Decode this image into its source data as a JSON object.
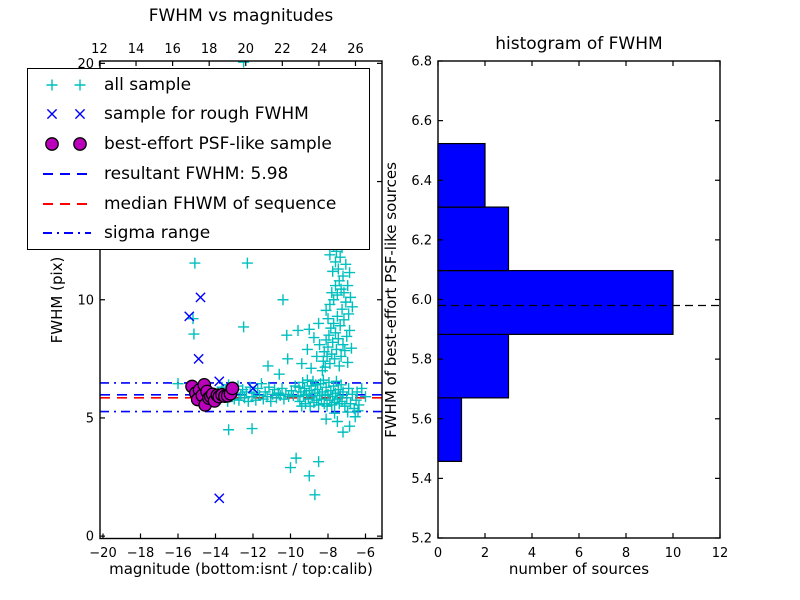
{
  "figure": {
    "background": "#ffffff"
  },
  "colors": {
    "all_sample": "#00bfbf",
    "rough_sample": "#0000ff",
    "psf_sample": "#bb00bb",
    "psf_edge": "#000000",
    "resultant_line": "#0000ff",
    "median_line": "#ff0000",
    "sigma_line": "#0000ff",
    "hist_bar": "#0000ff",
    "hist_bar_edge": "#000000",
    "hist_dashed_line": "#000000",
    "axis": "#000000"
  },
  "chart_data": [
    {
      "type": "scatter",
      "title": "FWHM vs magnitudes",
      "xlabel": "magnitude (bottom:isnt / top:calib)",
      "ylabel": "FWHM (pix)",
      "xlim": [
        -20.16,
        -5.12
      ],
      "ylim": [
        -0.1,
        20.1
      ],
      "top_xlim": [
        12.03,
        27.45
      ],
      "grid": false,
      "x_tick_values": [
        -20,
        -18,
        -16,
        -14,
        -12,
        -10,
        -8,
        -6
      ],
      "x_tick_labels": [
        "−20",
        "−18",
        "−16",
        "−14",
        "−12",
        "−10",
        "−8",
        "−6"
      ],
      "y_tick_values": [
        0,
        5,
        10,
        15,
        20
      ],
      "y_tick_labels": [
        "0",
        "5",
        "10",
        "15",
        "20"
      ],
      "top_tick_values": [
        12,
        14,
        16,
        18,
        20,
        22,
        24,
        26
      ],
      "top_tick_labels": [
        "12",
        "14",
        "16",
        "18",
        "20",
        "22",
        "24",
        "26"
      ],
      "hlines": [
        {
          "name": "sigma-upper",
          "y": 6.48,
          "style": "dashdot",
          "color": "#0000ff"
        },
        {
          "name": "resultant-fwhm",
          "y": 5.98,
          "style": "dashed",
          "color": "#0000ff"
        },
        {
          "name": "median-fwhm",
          "y": 5.85,
          "style": "dashed",
          "color": "#ff0000"
        },
        {
          "name": "sigma-lower",
          "y": 5.27,
          "style": "dashdot",
          "color": "#0000ff"
        }
      ],
      "series": [
        {
          "name": "all sample",
          "marker": "plus",
          "color": "#00bfbf",
          "points": [
            [
              -16.0,
              6.45
            ],
            [
              -15.2,
              9.2
            ],
            [
              -15.15,
              8.55
            ],
            [
              -15.1,
              11.55
            ],
            [
              -12.3,
              11.55
            ],
            [
              -12.5,
              8.85
            ],
            [
              -12.5,
              20.05
            ],
            [
              -13.3,
              4.5
            ],
            [
              -12.05,
              4.55
            ],
            [
              -11.2,
              7.2
            ],
            [
              -10.4,
              10.0
            ],
            [
              -10.2,
              8.5
            ],
            [
              -10.15,
              7.5
            ],
            [
              -9.6,
              8.7
            ],
            [
              -10.6,
              6.85
            ],
            [
              -9.7,
              3.3
            ],
            [
              -10.0,
              2.9
            ],
            [
              -8.5,
              3.15
            ],
            [
              -9.0,
              2.55
            ],
            [
              -8.7,
              1.75
            ],
            [
              -6.2,
              6.25
            ],
            [
              -6.0,
              5.9
            ],
            [
              -13.85,
              6.1
            ],
            [
              -13.75,
              5.8
            ],
            [
              -13.65,
              6.3
            ],
            [
              -13.55,
              5.95
            ],
            [
              -13.45,
              6.15
            ],
            [
              -13.35,
              5.7
            ],
            [
              -13.3,
              6.4
            ],
            [
              -13.2,
              5.9
            ],
            [
              -13.1,
              6.2
            ],
            [
              -13.0,
              5.8
            ],
            [
              -12.9,
              6.05
            ],
            [
              -12.8,
              6.35
            ],
            [
              -12.75,
              5.75
            ],
            [
              -12.65,
              5.95
            ],
            [
              -12.55,
              6.2
            ],
            [
              -12.45,
              5.85
            ],
            [
              -12.35,
              6.1
            ],
            [
              -12.25,
              5.7
            ],
            [
              -12.15,
              6.3
            ],
            [
              -12.05,
              5.9
            ],
            [
              -11.95,
              6.05
            ],
            [
              -11.85,
              5.75
            ],
            [
              -11.75,
              6.25
            ],
            [
              -11.65,
              5.95
            ],
            [
              -11.55,
              6.45
            ],
            [
              -11.45,
              5.8
            ],
            [
              -11.35,
              6.1
            ],
            [
              -11.25,
              5.9
            ],
            [
              -11.15,
              6.3
            ],
            [
              -11.05,
              5.7
            ],
            [
              -10.95,
              6.0
            ],
            [
              -10.85,
              6.2
            ],
            [
              -10.75,
              5.85
            ],
            [
              -10.65,
              6.05
            ],
            [
              -10.55,
              5.95
            ],
            [
              -10.45,
              6.25
            ],
            [
              -10.35,
              5.8
            ],
            [
              -10.25,
              6.0
            ],
            [
              -10.1,
              5.9
            ],
            [
              -9.95,
              6.15
            ],
            [
              -9.85,
              5.95
            ],
            [
              -9.75,
              6.35
            ],
            [
              -9.6,
              5.9
            ],
            [
              -9.55,
              6.3
            ],
            [
              -9.5,
              5.7
            ],
            [
              -9.45,
              6.1
            ],
            [
              -9.4,
              5.5
            ],
            [
              -9.35,
              6.5
            ],
            [
              -9.3,
              5.95
            ],
            [
              -9.25,
              6.25
            ],
            [
              -9.2,
              5.6
            ],
            [
              -9.15,
              6.0
            ],
            [
              -9.1,
              6.6
            ],
            [
              -9.05,
              5.8
            ],
            [
              -9.0,
              6.15
            ],
            [
              -8.95,
              5.5
            ],
            [
              -8.9,
              6.35
            ],
            [
              -8.85,
              5.9
            ],
            [
              -8.8,
              6.55
            ],
            [
              -8.75,
              5.65
            ],
            [
              -8.7,
              6.05
            ],
            [
              -8.65,
              6.4
            ],
            [
              -8.6,
              5.75
            ],
            [
              -8.55,
              6.2
            ],
            [
              -8.5,
              5.55
            ],
            [
              -8.45,
              5.95
            ],
            [
              -8.4,
              6.45
            ],
            [
              -8.35,
              5.8
            ],
            [
              -8.3,
              6.1
            ],
            [
              -8.25,
              6.6
            ],
            [
              -8.2,
              5.6
            ],
            [
              -8.15,
              5.95
            ],
            [
              -8.1,
              6.3
            ],
            [
              -8.05,
              5.5
            ],
            [
              -8.0,
              6.0
            ],
            [
              -7.95,
              6.5
            ],
            [
              -7.9,
              5.75
            ],
            [
              -7.85,
              6.15
            ],
            [
              -7.8,
              5.55
            ],
            [
              -7.75,
              5.9
            ],
            [
              -7.7,
              6.35
            ],
            [
              -7.65,
              5.65
            ],
            [
              -7.6,
              6.05
            ],
            [
              -7.55,
              6.55
            ],
            [
              -7.5,
              5.8
            ],
            [
              -7.45,
              6.2
            ],
            [
              -7.4,
              5.6
            ],
            [
              -7.35,
              5.95
            ],
            [
              -7.3,
              6.4
            ],
            [
              -7.25,
              5.7
            ],
            [
              -7.2,
              6.1
            ],
            [
              -7.1,
              5.5
            ],
            [
              -7.0,
              5.85
            ],
            [
              -6.9,
              6.25
            ],
            [
              -6.8,
              5.6
            ],
            [
              -6.7,
              6.0
            ],
            [
              -6.6,
              5.4
            ],
            [
              -6.5,
              5.75
            ],
            [
              -6.45,
              6.1
            ],
            [
              -6.35,
              5.55
            ],
            [
              -7.5,
              4.85
            ],
            [
              -7.2,
              4.4
            ],
            [
              -6.85,
              4.65
            ],
            [
              -6.55,
              5.05
            ],
            [
              -8.1,
              4.95
            ],
            [
              -6.4,
              5.3
            ],
            [
              -7.65,
              5.2
            ],
            [
              -6.95,
              5.25
            ],
            [
              -8.3,
              7.0
            ],
            [
              -8.25,
              7.4
            ],
            [
              -8.2,
              7.8
            ],
            [
              -8.15,
              7.15
            ],
            [
              -8.1,
              8.3
            ],
            [
              -8.05,
              7.6
            ],
            [
              -8.0,
              8.0
            ],
            [
              -7.95,
              8.5
            ],
            [
              -7.9,
              7.3
            ],
            [
              -7.85,
              8.8
            ],
            [
              -7.8,
              7.7
            ],
            [
              -7.75,
              8.2
            ],
            [
              -7.7,
              9.0
            ],
            [
              -7.65,
              7.5
            ],
            [
              -7.6,
              8.6
            ],
            [
              -7.55,
              7.9
            ],
            [
              -7.5,
              9.3
            ],
            [
              -7.45,
              8.35
            ],
            [
              -7.4,
              7.2
            ],
            [
              -7.35,
              8.9
            ],
            [
              -7.3,
              7.6
            ],
            [
              -7.25,
              9.6
            ],
            [
              -7.2,
              8.1
            ],
            [
              -7.15,
              9.15
            ],
            [
              -7.1,
              7.85
            ],
            [
              -7.05,
              9.9
            ],
            [
              -7.0,
              8.45
            ],
            [
              -6.95,
              7.35
            ],
            [
              -6.9,
              9.4
            ],
            [
              -6.85,
              8.7
            ],
            [
              -6.8,
              10.1
            ],
            [
              -6.75,
              7.95
            ],
            [
              -6.7,
              9.7
            ],
            [
              -8.0,
              9.2
            ],
            [
              -7.9,
              9.8
            ],
            [
              -7.8,
              10.3
            ],
            [
              -7.7,
              10.0
            ],
            [
              -7.6,
              10.6
            ],
            [
              -7.5,
              10.2
            ],
            [
              -7.4,
              10.8
            ],
            [
              -7.3,
              10.45
            ],
            [
              -7.2,
              11.0
            ],
            [
              -7.45,
              11.3
            ],
            [
              -7.6,
              11.6
            ],
            [
              -7.75,
              11.2
            ],
            [
              -7.35,
              11.8
            ],
            [
              -7.55,
              12.05
            ],
            [
              -7.7,
              12.3
            ],
            [
              -7.9,
              11.9
            ],
            [
              -7.25,
              12.2
            ],
            [
              -7.05,
              11.5
            ],
            [
              -6.95,
              10.6
            ],
            [
              -6.85,
              11.15
            ],
            [
              -7.15,
              10.3
            ],
            [
              -8.1,
              9.55
            ],
            [
              -9.4,
              7.3
            ],
            [
              -9.1,
              7.9
            ],
            [
              -8.9,
              7.1
            ],
            [
              -8.75,
              8.4
            ],
            [
              -8.6,
              7.6
            ],
            [
              -8.5,
              9.0
            ],
            [
              -8.45,
              8.1
            ],
            [
              -9.0,
              8.75
            ]
          ]
        },
        {
          "name": "sample for rough FWHM",
          "marker": "x",
          "color": "#0000ff",
          "points": [
            [
              -14.8,
              10.1
            ],
            [
              -15.4,
              9.3
            ],
            [
              -14.9,
              7.5
            ],
            [
              -13.8,
              6.55
            ],
            [
              -12.0,
              6.25
            ],
            [
              -13.8,
              1.6
            ]
          ]
        },
        {
          "name": "best-effort PSF-like sample",
          "marker": "circle",
          "color": "#bb00bb",
          "edge": "#000000",
          "points": [
            [
              -15.25,
              6.33
            ],
            [
              -15.05,
              6.05
            ],
            [
              -14.85,
              6.18
            ],
            [
              -14.95,
              5.78
            ],
            [
              -14.7,
              5.95
            ],
            [
              -14.6,
              6.4
            ],
            [
              -14.55,
              5.55
            ],
            [
              -14.45,
              6.12
            ],
            [
              -14.35,
              5.84
            ],
            [
              -14.25,
              5.91
            ],
            [
              -14.15,
              6.0
            ],
            [
              -14.05,
              5.72
            ],
            [
              -13.9,
              5.96
            ],
            [
              -13.8,
              5.9
            ],
            [
              -13.65,
              5.98
            ],
            [
              -13.5,
              5.92
            ],
            [
              -13.35,
              5.94
            ],
            [
              -13.2,
              6.02
            ],
            [
              -13.1,
              6.25
            ]
          ]
        }
      ],
      "legend": {
        "position": "upper left",
        "entries": [
          {
            "label": "all sample",
            "type": "marker",
            "marker": "plus",
            "color": "#00bfbf"
          },
          {
            "label": "sample for rough FWHM",
            "type": "marker",
            "marker": "x",
            "color": "#0000ff"
          },
          {
            "label": "best-effort PSF-like sample",
            "type": "marker",
            "marker": "circle",
            "color": "#bb00bb"
          },
          {
            "label": "resultant FWHM: 5.98",
            "type": "line",
            "style": "dashed",
            "color": "#0000ff"
          },
          {
            "label": "median FHWM of sequence",
            "type": "line",
            "style": "dashed",
            "color": "#ff0000"
          },
          {
            "label": "sigma range",
            "type": "line",
            "style": "dashdot",
            "color": "#0000ff"
          }
        ]
      }
    },
    {
      "type": "bar",
      "orientation": "horizontal",
      "title": "histogram of FWHM",
      "xlabel": "number of sources",
      "ylabel": "FWHM of best-effort PSF-like sources",
      "xlim": [
        0,
        12
      ],
      "ylim": [
        5.2,
        6.8
      ],
      "grid": false,
      "x_tick_values": [
        0,
        2,
        4,
        6,
        8,
        10,
        12
      ],
      "x_tick_labels": [
        "0",
        "2",
        "4",
        "6",
        "8",
        "10",
        "12"
      ],
      "y_tick_values": [
        5.2,
        5.4,
        5.6,
        5.8,
        6.0,
        6.2,
        6.4,
        6.6,
        6.8
      ],
      "y_tick_labels": [
        "5.2",
        "5.4",
        "5.6",
        "5.8",
        "6.0",
        "6.2",
        "6.4",
        "6.6",
        "6.8"
      ],
      "bin_edges": [
        5.457,
        5.67,
        5.883,
        6.097,
        6.31,
        6.523
      ],
      "counts": [
        1,
        3,
        10,
        3,
        2
      ],
      "bar_color": "#0000ff",
      "bar_edge": "#000000",
      "hline": {
        "name": "resultant-fwhm",
        "y": 5.98,
        "style": "dashed",
        "color": "#000000"
      }
    }
  ]
}
